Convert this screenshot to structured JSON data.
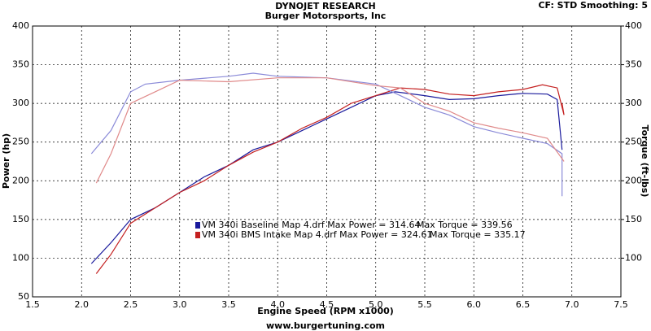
{
  "chart_data": {
    "type": "line",
    "title": "DYNOJET RESEARCH",
    "subtitle": "Burger Motorsports, Inc",
    "settings_label": "CF: STD  Smoothing: 5",
    "x_label": "Engine Speed (RPM x1000)",
    "y_label": "Power (hp)",
    "y2_label": "Torque (ft-lbs)",
    "footer": "www.burgertuning.com",
    "xlim": [
      1.5,
      7.5
    ],
    "xticks": [
      1.5,
      {
        "value": 2,
        "label": "2.0"
      },
      2.5,
      {
        "value": 3,
        "label": "3.0"
      },
      3.5,
      {
        "value": 4,
        "label": "4.0"
      },
      4.5,
      {
        "value": 5,
        "label": "5.0"
      },
      5.5,
      {
        "value": 6,
        "label": "6.0"
      },
      6.5,
      {
        "value": 7,
        "label": "7.0"
      },
      7.5
    ],
    "ylim": [
      50,
      400
    ],
    "yticks": [
      50,
      100,
      150,
      200,
      250,
      300,
      350,
      400
    ],
    "y2lim": [
      50,
      400
    ],
    "y2ticks": [
      100,
      150,
      200,
      250,
      300,
      350,
      400
    ],
    "grid": true,
    "legend": [
      {
        "color": "#1a1a9c",
        "text": "VM 340i Baseline Map 4.drf Max Power = 314.64",
        "torque": "Max Torque = 339.56"
      },
      {
        "color": "#c42020",
        "text": "VM 340i BMS Intake Map 4.drf Max Power = 324.61",
        "torque": "Max Torque = 335.17"
      }
    ],
    "series": [
      {
        "color": "#1a1a9c",
        "x": [
          2.1,
          2.3,
          2.5,
          2.75,
          3.0,
          3.25,
          3.5,
          3.75,
          4.0,
          4.25,
          4.5,
          4.75,
          5.0,
          5.2,
          5.5,
          5.75,
          6.0,
          6.25,
          6.5,
          6.75,
          6.85,
          6.9
        ],
        "values": [
          93,
          120,
          150,
          165,
          185,
          205,
          220,
          240,
          250,
          265,
          280,
          295,
          310,
          315,
          310,
          305,
          306,
          310,
          313,
          312,
          305,
          240
        ]
      },
      {
        "color": "#c42020",
        "x": [
          2.15,
          2.3,
          2.5,
          2.75,
          3.0,
          3.25,
          3.5,
          3.75,
          4.0,
          4.25,
          4.5,
          4.75,
          5.0,
          5.25,
          5.5,
          5.75,
          6.0,
          6.25,
          6.5,
          6.7,
          6.85,
          6.92,
          6.9
        ],
        "values": [
          80,
          105,
          145,
          165,
          185,
          200,
          220,
          237,
          250,
          268,
          282,
          300,
          310,
          320,
          318,
          312,
          310,
          315,
          318,
          324,
          320,
          285,
          300
        ]
      },
      {
        "color": "#8a8ad8",
        "axis": "y2",
        "x": [
          2.1,
          2.3,
          2.5,
          2.65,
          3.0,
          3.5,
          3.75,
          4.0,
          4.5,
          5.0,
          5.25,
          5.5,
          5.75,
          6.0,
          6.25,
          6.5,
          6.75,
          6.9,
          6.9
        ],
        "values": [
          235,
          265,
          315,
          325,
          330,
          335,
          339,
          335,
          333,
          325,
          310,
          295,
          285,
          270,
          262,
          255,
          248,
          235,
          180
        ]
      },
      {
        "color": "#e08a8a",
        "axis": "y2",
        "x": [
          2.15,
          2.3,
          2.5,
          2.75,
          3.0,
          3.5,
          4.0,
          4.5,
          5.0,
          5.25,
          5.5,
          5.75,
          6.0,
          6.25,
          6.5,
          6.75,
          6.92
        ],
        "values": [
          197,
          235,
          300,
          315,
          330,
          328,
          333,
          333,
          323,
          320,
          300,
          290,
          275,
          268,
          262,
          255,
          225
        ]
      }
    ]
  }
}
